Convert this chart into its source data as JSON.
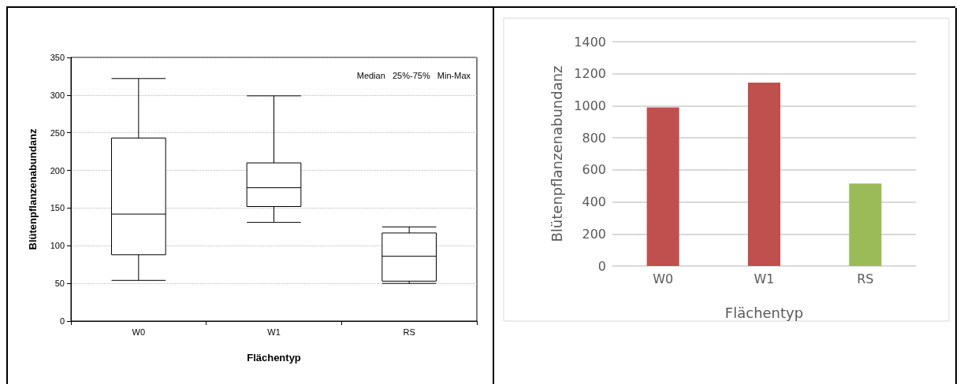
{
  "chart_data": [
    {
      "type": "box",
      "xlabel": "Flächentyp",
      "ylabel": "Blütenpflanzenabundanz",
      "categories": [
        "W0",
        "W1",
        "RS"
      ],
      "boxes": [
        {
          "low": 54,
          "q1": 88,
          "median": 142,
          "q3": 243,
          "high": 322
        },
        {
          "low": 131,
          "q1": 152,
          "median": 177,
          "q3": 210,
          "high": 299
        },
        {
          "low": 50,
          "q1": 53,
          "median": 86,
          "q3": 117,
          "high": 125
        }
      ],
      "ylim": [
        0,
        350
      ],
      "yticks": [
        0,
        50,
        100,
        150,
        200,
        250,
        300,
        350
      ],
      "grid": "y",
      "annotations": [
        "Median",
        "25%-75%",
        "Min-Max"
      ]
    },
    {
      "type": "bar",
      "xlabel": "Flächentyp",
      "ylabel": "Blütenpflanzenabundanz",
      "categories": [
        "W0",
        "W1",
        "RS"
      ],
      "values": [
        990,
        1145,
        515
      ],
      "colors": [
        "#c0504d",
        "#c0504d",
        "#9bbb59"
      ],
      "ylim": [
        0,
        1400
      ],
      "yticks": [
        0,
        200,
        400,
        600,
        800,
        1000,
        1200,
        1400
      ],
      "grid": "y"
    }
  ]
}
